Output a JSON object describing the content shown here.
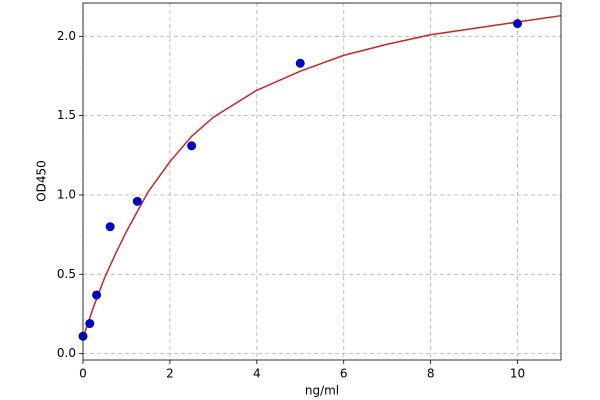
{
  "chart_data": {
    "type": "scatter",
    "xlabel": "ng/ml",
    "ylabel": "OD450",
    "points": {
      "color": "#0000c0",
      "x": [
        0,
        0.156,
        0.3125,
        0.625,
        1.25,
        2.5,
        5,
        10
      ],
      "values": [
        0.11,
        0.19,
        0.37,
        0.8,
        0.96,
        1.31,
        1.83,
        2.08
      ]
    },
    "curve": {
      "color": "#c0282a",
      "x": [
        0,
        0.25,
        0.5,
        0.75,
        1,
        1.5,
        2,
        2.5,
        3,
        4,
        5,
        6,
        7,
        8,
        9,
        10,
        11
      ],
      "values": [
        0.1,
        0.3,
        0.48,
        0.63,
        0.77,
        1.02,
        1.21,
        1.37,
        1.49,
        1.66,
        1.78,
        1.88,
        1.95,
        2.01,
        2.05,
        2.09,
        2.13
      ]
    },
    "xlim": [
      0,
      11
    ],
    "ylim": [
      -0.04,
      2.21
    ],
    "xticks": [
      0,
      2,
      4,
      6,
      8,
      10
    ],
    "yticks": [
      {
        "value": 0,
        "label": "0.0"
      },
      {
        "value": 0.5,
        "label": "0.5"
      },
      {
        "value": 1,
        "label": "1.0"
      },
      {
        "value": 1.5,
        "label": "1.5"
      },
      {
        "value": 2,
        "label": "2.0"
      }
    ],
    "grid": true
  }
}
